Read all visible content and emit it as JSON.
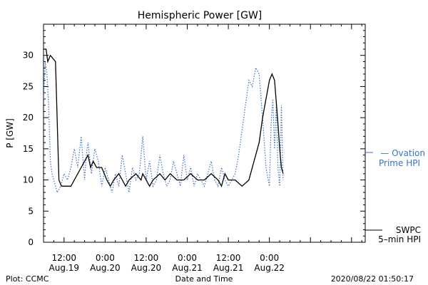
{
  "chart_data": {
    "type": "line",
    "title": "Hemispheric Power [GW]",
    "xlabel": "Date and Time",
    "ylabel": "P [GW]",
    "xlim": [
      "2020-08-18T06:00",
      "2020-08-22T04:00"
    ],
    "ylim": [
      0,
      35
    ],
    "y_ticks": [
      0,
      5,
      10,
      15,
      20,
      25,
      30
    ],
    "x_ticks": [
      {
        "t": "2020-08-18T12:00",
        "time": "12:00",
        "date": "Aug.19"
      },
      {
        "t": "2020-08-19T00:00",
        "time": "0:00",
        "date": "Aug.20"
      },
      {
        "t": "2020-08-19T12:00",
        "time": "12:00",
        "date": "Aug.20"
      },
      {
        "t": "2020-08-20T00:00",
        "time": "0:00",
        "date": "Aug.21"
      },
      {
        "t": "2020-08-20T12:00",
        "time": "12:00",
        "date": "Aug.21"
      },
      {
        "t": "2020-08-21T00:00",
        "time": "0:00",
        "date": "Aug.22"
      }
    ],
    "grid": false,
    "series": [
      {
        "name": "SWPC 5-min HPI",
        "color": "#000000",
        "style": "solid",
        "x": [
          "2020-08-18T06:00",
          "2020-08-18T06:45",
          "2020-08-18T07:15",
          "2020-08-18T08:00",
          "2020-08-18T09:30",
          "2020-08-18T10:30",
          "2020-08-18T11:15",
          "2020-08-18T14:00",
          "2020-08-18T15:00",
          "2020-08-18T16:00",
          "2020-08-18T17:00",
          "2020-08-18T18:00",
          "2020-08-18T19:00",
          "2020-08-18T19:45",
          "2020-08-18T20:30",
          "2020-08-18T21:30",
          "2020-08-18T23:00",
          "2020-08-19T00:30",
          "2020-08-19T01:30",
          "2020-08-19T02:30",
          "2020-08-19T04:00",
          "2020-08-19T05:00",
          "2020-08-19T06:00",
          "2020-08-19T07:00",
          "2020-08-19T09:00",
          "2020-08-19T10:30",
          "2020-08-19T11:00",
          "2020-08-19T12:00",
          "2020-08-19T13:00",
          "2020-08-19T14:00",
          "2020-08-19T16:00",
          "2020-08-19T17:30",
          "2020-08-19T19:00",
          "2020-08-19T21:00",
          "2020-08-19T23:00",
          "2020-08-20T01:00",
          "2020-08-20T03:00",
          "2020-08-20T05:00",
          "2020-08-20T07:00",
          "2020-08-20T09:00",
          "2020-08-20T10:00",
          "2020-08-20T11:00",
          "2020-08-20T12:00",
          "2020-08-20T14:00",
          "2020-08-20T16:00",
          "2020-08-20T18:00",
          "2020-08-20T19:00",
          "2020-08-20T20:00",
          "2020-08-20T21:00",
          "2020-08-20T22:00",
          "2020-08-20T23:00",
          "2020-08-21T00:00",
          "2020-08-21T00:45",
          "2020-08-21T01:30",
          "2020-08-21T02:30",
          "2020-08-21T03:00",
          "2020-08-21T03:30",
          "2020-08-21T04:00"
        ],
        "y": [
          31,
          31,
          29,
          30,
          29,
          10,
          9,
          9,
          10,
          11,
          12,
          13,
          14,
          12,
          13,
          12,
          12,
          10,
          9,
          10,
          11,
          10,
          9,
          10,
          11,
          10,
          11,
          10,
          9,
          10,
          11,
          10,
          11,
          10,
          10,
          11,
          10,
          10,
          11,
          10,
          9,
          11,
          10,
          10,
          9,
          10,
          12,
          14,
          16,
          20,
          23,
          26,
          27,
          26,
          19,
          15,
          12,
          11
        ]
      },
      {
        "name": "Ovation Prime HPI",
        "color": "#3a72c8",
        "style": "dotted",
        "x": [
          "2020-08-18T06:00",
          "2020-08-18T06:30",
          "2020-08-18T07:00",
          "2020-08-18T07:30",
          "2020-08-18T08:00",
          "2020-08-18T08:30",
          "2020-08-18T09:00",
          "2020-08-18T10:00",
          "2020-08-18T11:00",
          "2020-08-18T12:00",
          "2020-08-18T13:00",
          "2020-08-18T14:00",
          "2020-08-18T15:00",
          "2020-08-18T16:00",
          "2020-08-18T17:00",
          "2020-08-18T18:00",
          "2020-08-18T18:30",
          "2020-08-18T19:00",
          "2020-08-18T20:00",
          "2020-08-18T21:00",
          "2020-08-18T22:00",
          "2020-08-18T23:00",
          "2020-08-19T00:00",
          "2020-08-19T01:00",
          "2020-08-19T02:00",
          "2020-08-19T03:00",
          "2020-08-19T04:00",
          "2020-08-19T05:00",
          "2020-08-19T06:00",
          "2020-08-19T07:00",
          "2020-08-19T08:00",
          "2020-08-19T09:00",
          "2020-08-19T10:00",
          "2020-08-19T11:00",
          "2020-08-19T12:00",
          "2020-08-19T13:00",
          "2020-08-19T14:00",
          "2020-08-19T15:00",
          "2020-08-19T16:00",
          "2020-08-19T17:00",
          "2020-08-19T18:00",
          "2020-08-19T19:00",
          "2020-08-19T20:00",
          "2020-08-19T21:00",
          "2020-08-19T22:00",
          "2020-08-19T23:00",
          "2020-08-20T00:00",
          "2020-08-20T01:00",
          "2020-08-20T02:00",
          "2020-08-20T03:00",
          "2020-08-20T04:00",
          "2020-08-20T05:00",
          "2020-08-20T06:00",
          "2020-08-20T07:00",
          "2020-08-20T08:00",
          "2020-08-20T09:00",
          "2020-08-20T10:00",
          "2020-08-20T11:00",
          "2020-08-20T12:00",
          "2020-08-20T13:00",
          "2020-08-20T14:00",
          "2020-08-20T15:00",
          "2020-08-20T16:00",
          "2020-08-20T17:00",
          "2020-08-20T18:00",
          "2020-08-20T19:00",
          "2020-08-20T20:00",
          "2020-08-20T21:00",
          "2020-08-20T22:00",
          "2020-08-20T23:00",
          "2020-08-21T00:00",
          "2020-08-21T00:30",
          "2020-08-21T01:00",
          "2020-08-21T01:30",
          "2020-08-21T02:00",
          "2020-08-21T02:30",
          "2020-08-21T03:00",
          "2020-08-21T03:30",
          "2020-08-21T04:00"
        ],
        "y": [
          23,
          29,
          27,
          22,
          13,
          11,
          10,
          8,
          9,
          11,
          10,
          12,
          15,
          12,
          17,
          10,
          14,
          16,
          11,
          15,
          13,
          9,
          12,
          10,
          8,
          11,
          9,
          14,
          11,
          8,
          12,
          10,
          11,
          17,
          10,
          13,
          9,
          10,
          14,
          11,
          9,
          10,
          13,
          11,
          9,
          14,
          10,
          12,
          9,
          11,
          10,
          9,
          11,
          13,
          10,
          9,
          12,
          10,
          9,
          10,
          11,
          14,
          18,
          22,
          26,
          25,
          28,
          27,
          20,
          12,
          9,
          19,
          23,
          15,
          22,
          12,
          9,
          22,
          10
        ]
      }
    ],
    "legend": [
      {
        "line1": "— Ovation",
        "line2": "Prime HPI",
        "color": "#3a72c8"
      },
      {
        "line1": "SWPC",
        "line2": "5–min HPI",
        "color": "#000000"
      }
    ]
  },
  "footer": {
    "left": "Plot: CCMC",
    "center": "Date and Time",
    "right": "2020/08/22 01:50:17"
  }
}
